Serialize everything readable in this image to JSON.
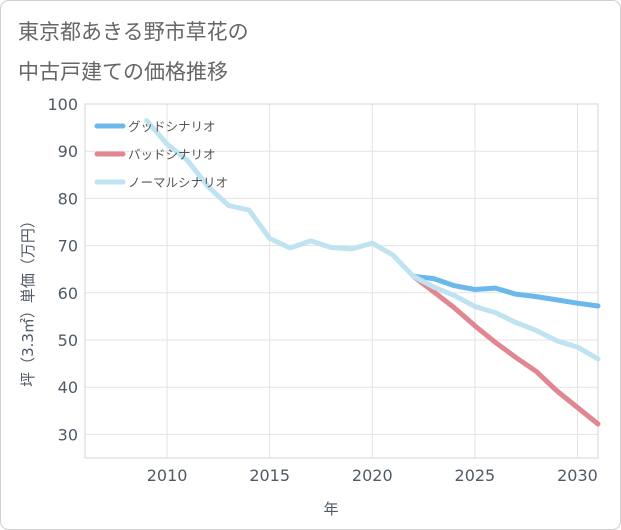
{
  "chart_data": {
    "type": "line",
    "title": [
      "東京都あきる野市草花の",
      "中古戸建ての価格推移"
    ],
    "xlabel": "年",
    "ylabel": "坪（3.3㎡）単価（万円）",
    "xlim": [
      2006,
      2031
    ],
    "ylim": [
      25,
      100
    ],
    "xticks": [
      2010,
      2015,
      2020,
      2025,
      2030
    ],
    "yticks": [
      30,
      40,
      50,
      60,
      70,
      80,
      90,
      100
    ],
    "grid": true,
    "legend_position": "top-left",
    "series": [
      {
        "name": "グッドシナリオ",
        "color": "#6cb7ec",
        "x": [
          2022,
          2023,
          2024,
          2025,
          2026,
          2027,
          2028,
          2029,
          2030,
          2031
        ],
        "y": [
          63.5,
          63.0,
          61.5,
          60.7,
          61.0,
          59.7,
          59.2,
          58.5,
          57.8,
          57.2
        ]
      },
      {
        "name": "バッドシナリオ",
        "color": "#e08791",
        "x": [
          2022,
          2023,
          2024,
          2025,
          2026,
          2027,
          2028,
          2029,
          2030,
          2031
        ],
        "y": [
          63.5,
          60.2,
          56.8,
          53.0,
          49.5,
          46.3,
          43.3,
          39.2,
          35.7,
          32.2
        ]
      },
      {
        "name": "ノーマルシナリオ",
        "color": "#bfe3f1",
        "x": [
          2009,
          2010,
          2011,
          2012,
          2013,
          2014,
          2015,
          2016,
          2017,
          2018,
          2019,
          2020,
          2021,
          2022,
          2023,
          2024,
          2025,
          2026,
          2027,
          2028,
          2029,
          2030,
          2031
        ],
        "y": [
          96.5,
          91.5,
          88.0,
          82.5,
          78.5,
          77.5,
          71.5,
          69.5,
          71.0,
          69.6,
          69.3,
          70.5,
          68.0,
          63.5,
          61.2,
          59.4,
          57.1,
          55.8,
          53.7,
          52.0,
          49.8,
          48.5,
          46.0
        ]
      }
    ]
  }
}
